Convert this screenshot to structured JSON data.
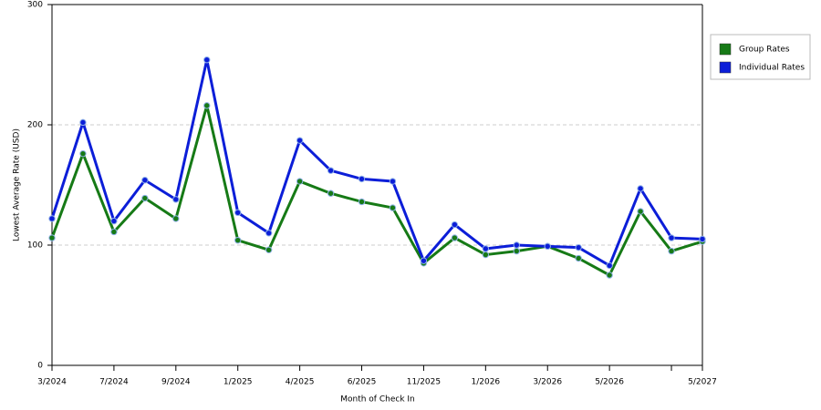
{
  "chart_data": {
    "type": "line",
    "x_label": "Month of Check In",
    "y_label": "Lowest Average Rate (USD)",
    "categories": [
      "3/2024",
      null,
      "7/2024",
      null,
      "9/2024",
      null,
      "1/2025",
      null,
      "4/2025",
      null,
      "6/2025",
      null,
      "11/2025",
      null,
      "1/2026",
      null,
      "3/2026",
      null,
      "5/2026",
      null,
      null,
      "5/2027"
    ],
    "series": [
      {
        "name": "Group Rates",
        "color": "#167a16",
        "values": [
          106,
          176,
          111,
          139,
          122,
          216,
          104,
          96,
          153,
          143,
          136,
          131,
          85,
          106,
          92,
          95,
          99,
          89,
          75,
          128,
          95,
          103
        ]
      },
      {
        "name": "Individual Rates",
        "color": "#0c1ed8",
        "values": [
          122,
          202,
          120,
          154,
          138,
          254,
          127,
          110,
          187,
          162,
          155,
          153,
          87,
          117,
          97,
          100,
          99,
          98,
          83,
          147,
          106,
          105
        ]
      }
    ],
    "ylim": [
      0,
      300
    ],
    "yticks": [
      0,
      100,
      200,
      300
    ],
    "grid": true
  }
}
